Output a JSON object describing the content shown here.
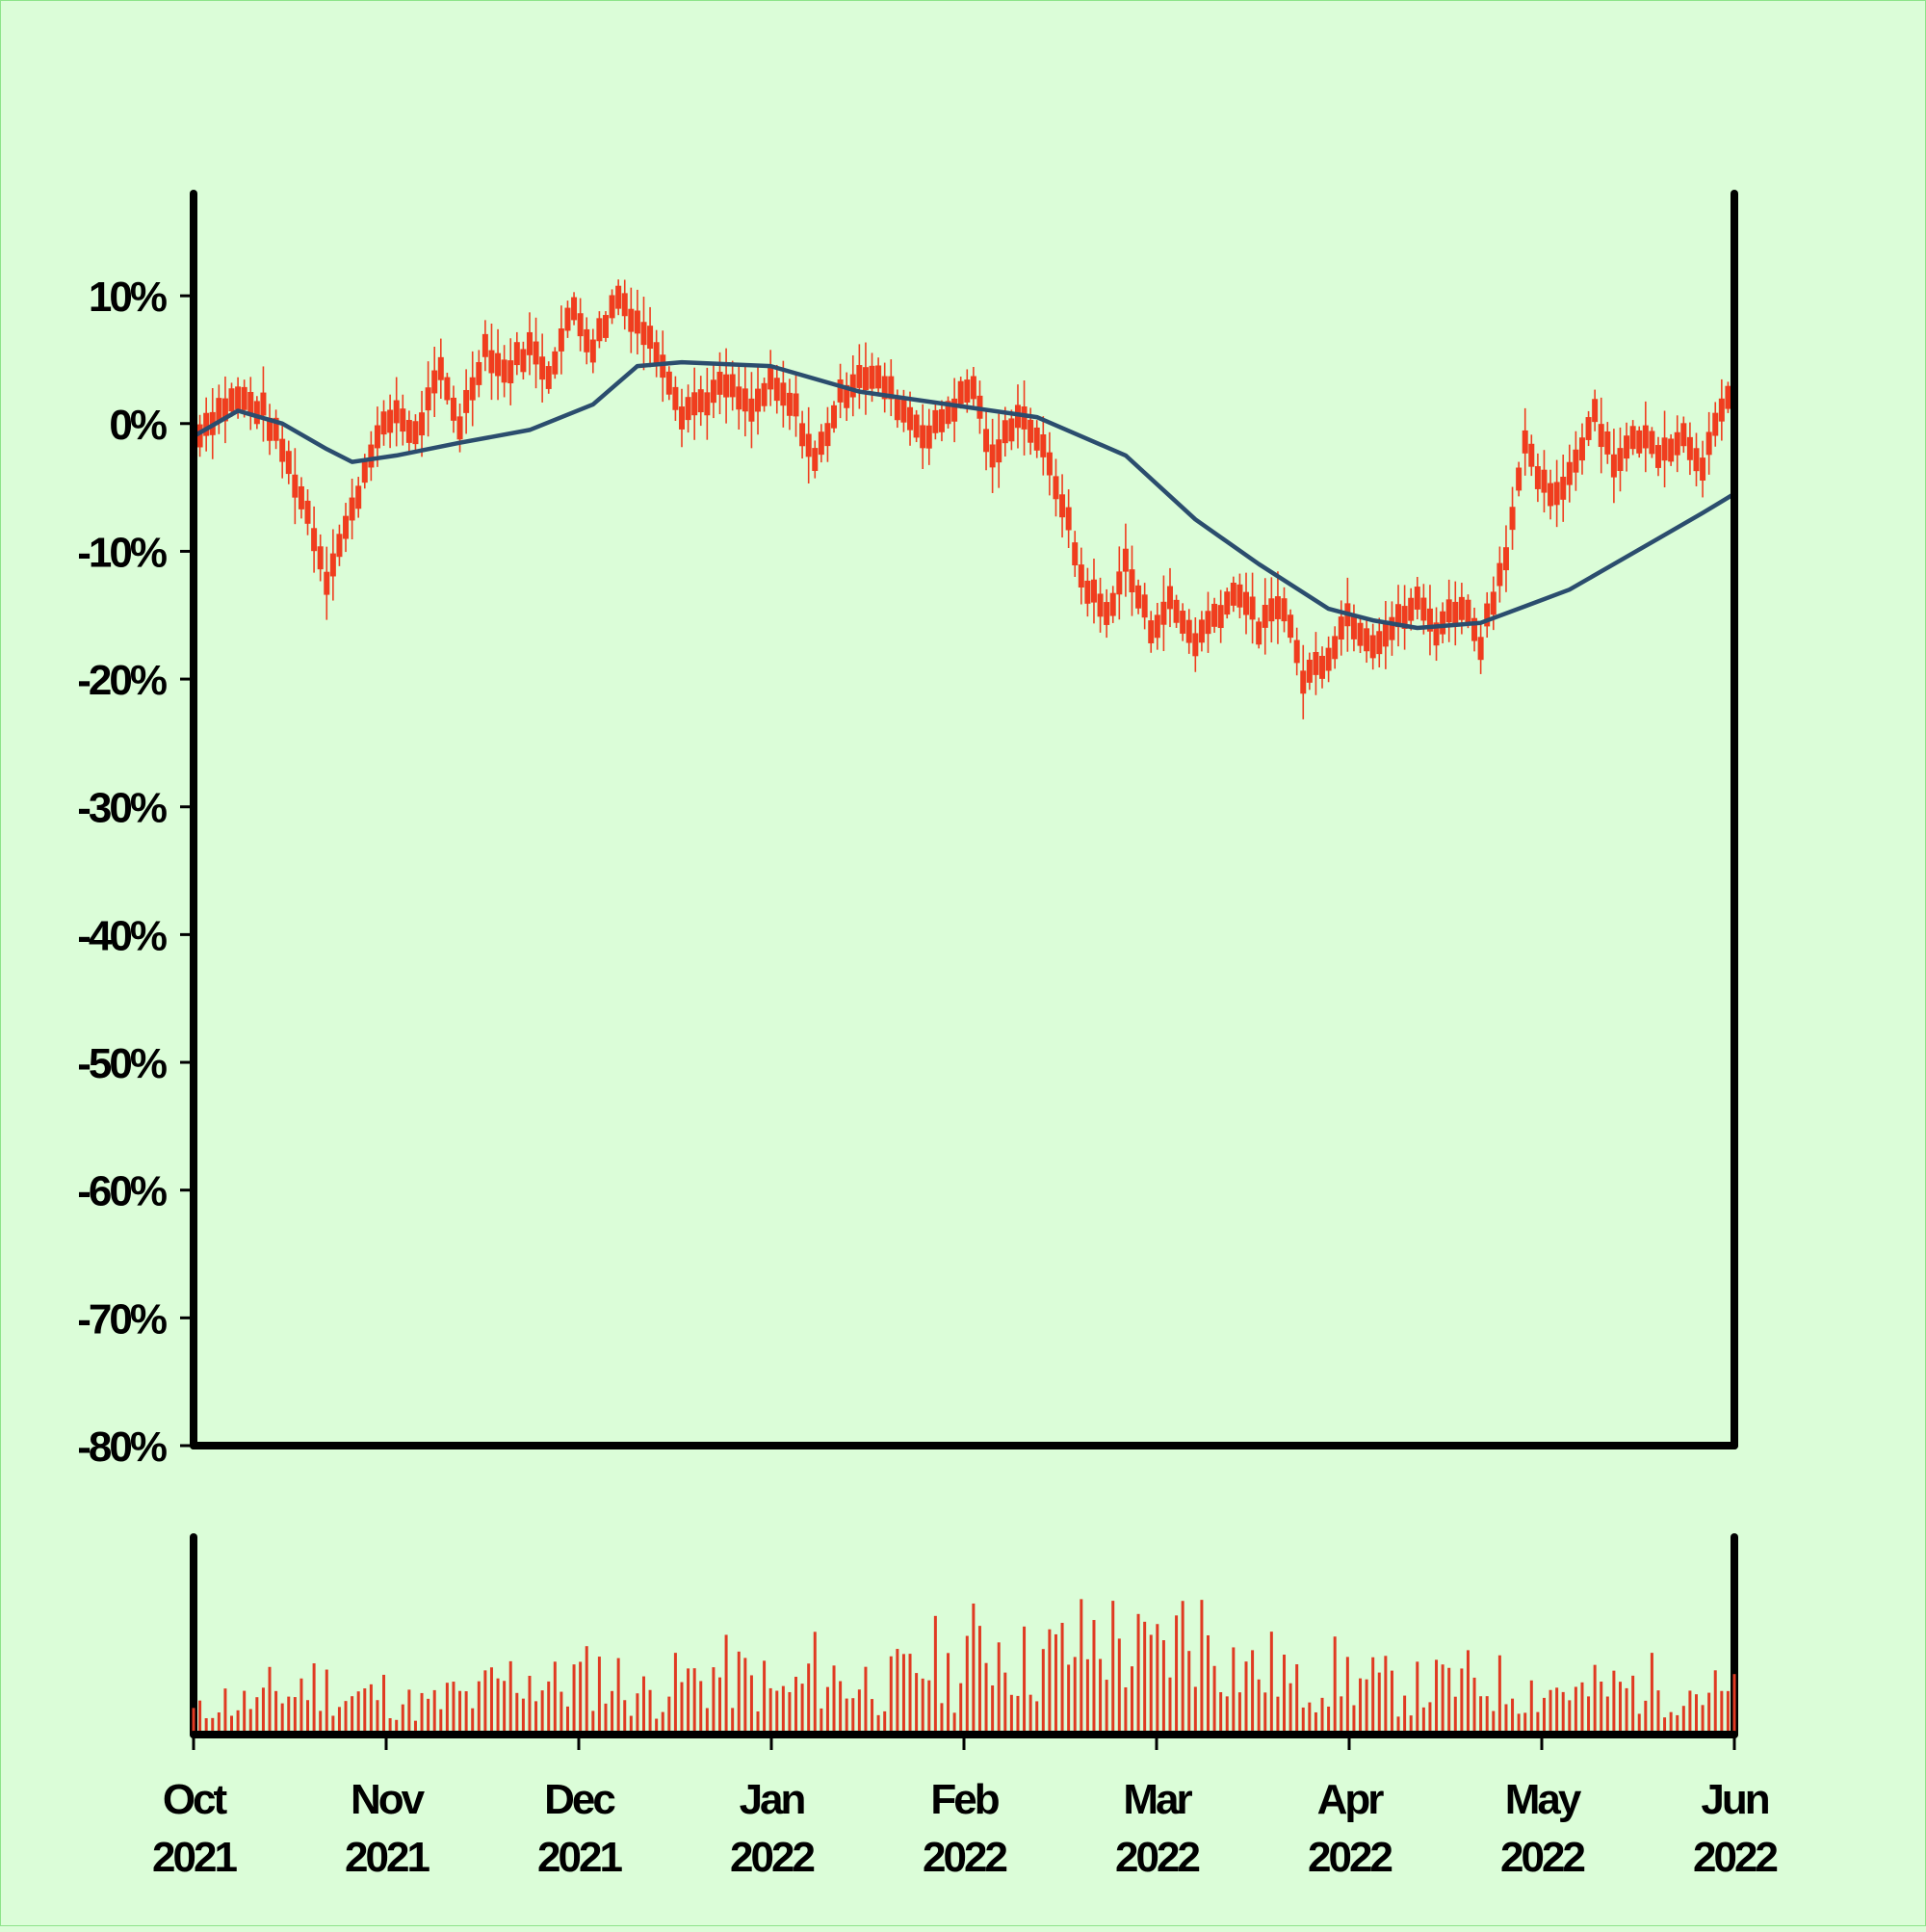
{
  "chart_data": [
    {
      "type": "ohlc",
      "title": "",
      "xlabel": "",
      "ylabel": "",
      "x_range": [
        "2021-10-01",
        "2022-06-01"
      ],
      "ylim": [
        -80,
        18
      ],
      "yticks": [
        10,
        0,
        -10,
        -20,
        -30,
        -40,
        -50,
        -60,
        -70,
        -80
      ],
      "ytick_labels": [
        "10%",
        "0%",
        "-10%",
        "-20%",
        "-30%",
        "-40%",
        "-50%",
        "-60%",
        "-70%",
        "-80%"
      ],
      "grid": false,
      "legend": "none",
      "colors": {
        "price": "#f03d1e",
        "moving_average": "#2b4d6e",
        "background": "#dbfdd8"
      },
      "series": [
        {
          "kind": "price_path",
          "dates": [
            "2021-10-01",
            "2021-10-05",
            "2021-10-08",
            "2021-10-12",
            "2021-10-15",
            "2021-10-19",
            "2021-10-22",
            "2021-10-26",
            "2021-10-29",
            "2021-11-02",
            "2021-11-05",
            "2021-11-09",
            "2021-11-12",
            "2021-11-16",
            "2021-11-19",
            "2021-11-23",
            "2021-11-26",
            "2021-11-30",
            "2021-12-03",
            "2021-12-07",
            "2021-12-10",
            "2021-12-14",
            "2021-12-17",
            "2021-12-21",
            "2021-12-24",
            "2021-12-28",
            "2021-12-31",
            "2022-01-04",
            "2022-01-07",
            "2022-01-11",
            "2022-01-14",
            "2022-01-18",
            "2022-01-21",
            "2022-01-25",
            "2022-01-28",
            "2022-02-01",
            "2022-02-04",
            "2022-02-08",
            "2022-02-11",
            "2022-02-15",
            "2022-02-18",
            "2022-02-22",
            "2022-02-25",
            "2022-03-01",
            "2022-03-04",
            "2022-03-08",
            "2022-03-11",
            "2022-03-15",
            "2022-03-18",
            "2022-03-22",
            "2022-03-25",
            "2022-03-29",
            "2022-04-01",
            "2022-04-05",
            "2022-04-08",
            "2022-04-12",
            "2022-04-15",
            "2022-04-19",
            "2022-04-22",
            "2022-04-26",
            "2022-04-29",
            "2022-05-03",
            "2022-05-06",
            "2022-05-10",
            "2022-05-13",
            "2022-05-17",
            "2022-05-20",
            "2022-05-24",
            "2022-05-27",
            "2022-06-01"
          ],
          "values": [
            -1,
            1,
            2,
            1,
            -2,
            -7,
            -12,
            -7,
            -2,
            1,
            -1,
            4,
            0,
            6,
            4,
            6,
            4,
            9,
            6,
            10,
            8,
            5,
            1,
            2,
            3,
            1,
            3,
            1,
            -3,
            2,
            4,
            3,
            1,
            -1,
            1,
            3,
            -3,
            1,
            -1,
            -6,
            -12,
            -15,
            -11,
            -16,
            -14,
            -17,
            -15,
            -13,
            -16,
            -14,
            -20,
            -18,
            -15,
            -17,
            -16,
            -14,
            -16,
            -14,
            -17,
            -10,
            -2,
            -6,
            -4,
            1,
            -3,
            -1,
            -2,
            -1,
            -3,
            3
          ]
        },
        {
          "kind": "moving_average",
          "dates": [
            "2021-10-01",
            "2021-10-08",
            "2021-10-15",
            "2021-10-22",
            "2021-10-26",
            "2021-11-02",
            "2021-11-12",
            "2021-11-23",
            "2021-12-03",
            "2021-12-10",
            "2021-12-17",
            "2021-12-31",
            "2022-01-14",
            "2022-01-28",
            "2022-02-11",
            "2022-02-25",
            "2022-03-08",
            "2022-03-18",
            "2022-03-29",
            "2022-04-05",
            "2022-04-12",
            "2022-04-22",
            "2022-04-29",
            "2022-05-06",
            "2022-05-13",
            "2022-05-20",
            "2022-05-27",
            "2022-06-01"
          ],
          "values": [
            -1,
            1,
            0,
            -2,
            -3,
            -2.5,
            -1.5,
            -0.5,
            1.5,
            4.5,
            4.8,
            4.5,
            2.5,
            1.5,
            0.5,
            -2.5,
            -7.5,
            -11,
            -14.5,
            -15.4,
            -16,
            -15.6,
            -14.3,
            -13,
            -11,
            -9,
            -7,
            -5.5
          ]
        }
      ],
      "volume_panel": {
        "type": "bar",
        "note_values_are_relative": true,
        "color": "#e03a22",
        "values": [
          22,
          34,
          31,
          32,
          42,
          40,
          50,
          47,
          36,
          38,
          41,
          34,
          30,
          30,
          38,
          35,
          47,
          55,
          58,
          52,
          48,
          56,
          60,
          53,
          43,
          40,
          50,
          53,
          55,
          60,
          56,
          50,
          40,
          45,
          65,
          57,
          50,
          52,
          48,
          55,
          68,
          72,
          60,
          83,
          90,
          85,
          70,
          75,
          80,
          88,
          95,
          92,
          80,
          78,
          90,
          105,
          100,
          85,
          70,
          62,
          65,
          45,
          55,
          60,
          58,
          50,
          48,
          46,
          45,
          48,
          50,
          52,
          50,
          47,
          45,
          44,
          46,
          40,
          44,
          45,
          47,
          50,
          48,
          46,
          42,
          38
        ]
      }
    }
  ],
  "x_axis": {
    "ticks": [
      {
        "month": "Oct",
        "year": "2021"
      },
      {
        "month": "Nov",
        "year": "2021"
      },
      {
        "month": "Dec",
        "year": "2021"
      },
      {
        "month": "Jan",
        "year": "2022"
      },
      {
        "month": "Feb",
        "year": "2022"
      },
      {
        "month": "Mar",
        "year": "2022"
      },
      {
        "month": "Apr",
        "year": "2022"
      },
      {
        "month": "May",
        "year": "2022"
      },
      {
        "month": "Jun",
        "year": "2022"
      }
    ]
  }
}
